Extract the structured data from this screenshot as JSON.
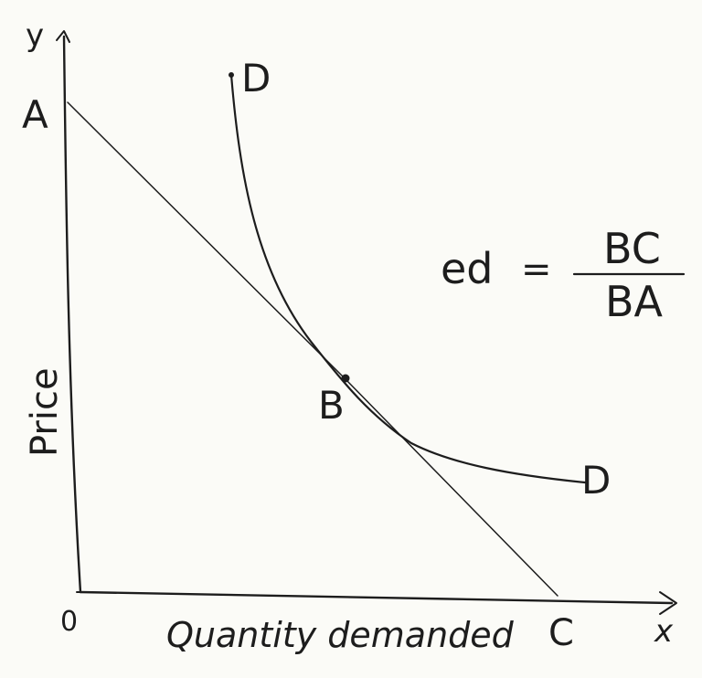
{
  "labels": {
    "y_axis_letter": "y",
    "x_axis_letter": "x",
    "origin": "0",
    "point_a": "A",
    "point_b": "B",
    "point_c": "C",
    "curve_top": "D",
    "curve_bottom": "D",
    "y_axis_title": "Price",
    "x_axis_title": "Quantity demanded"
  },
  "formula": {
    "lhs": "ed",
    "equals": "=",
    "numerator": "BC",
    "denominator": "BA"
  },
  "colors": {
    "ink": "#1d1d1d",
    "paper": "#fbfbf7"
  }
}
